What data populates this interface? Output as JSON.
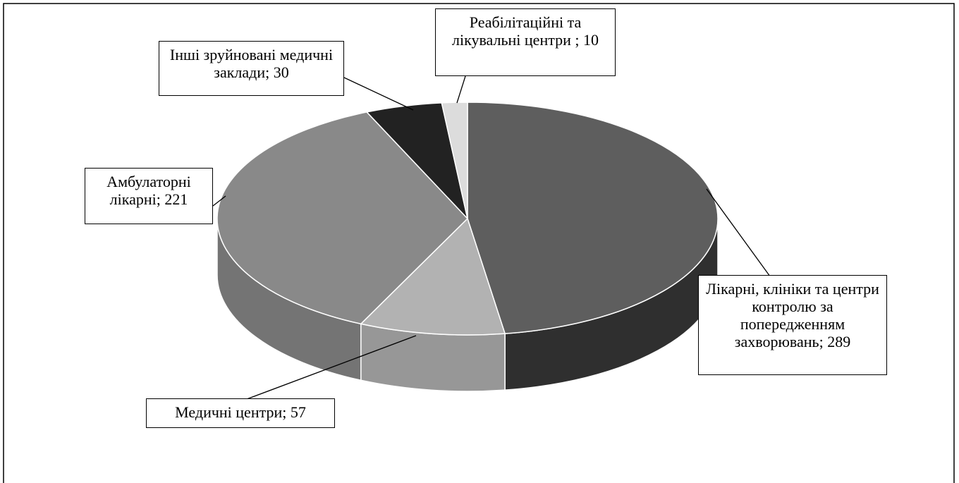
{
  "chart_data": {
    "type": "pie3d",
    "labels": [
      "Лікарні, клініки та центри контролю за попередженням захворювань; 289",
      "Медичні центри; 57",
      "Амбулаторні лікарні; 221",
      "Інші зруйновані медичні заклади; 30",
      "Реабілітаційні та лікувальні центри ; 10"
    ],
    "values": [
      289,
      57,
      221,
      30,
      10
    ],
    "colors": [
      "#5e5e5e",
      "#b2b2b2",
      "#898989",
      "#222222",
      "#dcdcdc"
    ]
  }
}
